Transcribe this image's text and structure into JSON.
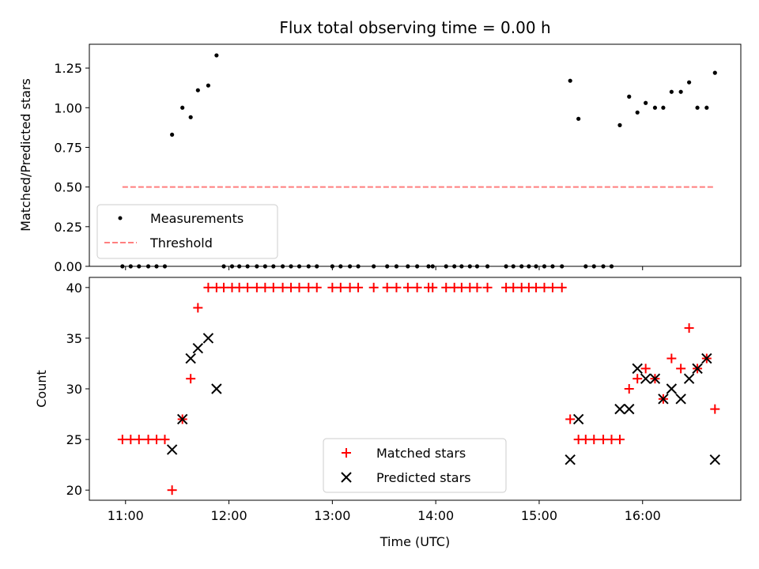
{
  "chart_data": [
    {
      "type": "scatter",
      "title": "Flux total observing time = 0.00 h",
      "ylabel": "Matched/Predicted stars",
      "ylim": [
        0,
        1.4
      ],
      "xlim": [
        10.65,
        16.95
      ],
      "yticks": [
        0,
        0.25,
        0.5,
        0.75,
        1.0,
        1.25
      ],
      "ytick_labels": [
        "0.00",
        "0.25",
        "0.50",
        "0.75",
        "1.00",
        "1.25"
      ],
      "grid": false,
      "legend_placement": "lower-left",
      "series": [
        {
          "name": "Measurements",
          "kind": "points",
          "color": "#000000",
          "marker": "dot",
          "points": [
            [
              10.97,
              0
            ],
            [
              11.05,
              0
            ],
            [
              11.13,
              0
            ],
            [
              11.22,
              0
            ],
            [
              11.3,
              0
            ],
            [
              11.38,
              0
            ],
            [
              11.45,
              0.83
            ],
            [
              11.55,
              1.0
            ],
            [
              11.63,
              0.94
            ],
            [
              11.7,
              1.11
            ],
            [
              11.8,
              1.14
            ],
            [
              11.88,
              1.33
            ],
            [
              11.95,
              0
            ],
            [
              12.03,
              0
            ],
            [
              12.1,
              0
            ],
            [
              12.18,
              0
            ],
            [
              12.27,
              0
            ],
            [
              12.35,
              0
            ],
            [
              12.43,
              0
            ],
            [
              12.52,
              0
            ],
            [
              12.6,
              0
            ],
            [
              12.68,
              0
            ],
            [
              12.77,
              0
            ],
            [
              12.85,
              0
            ],
            [
              13.0,
              0
            ],
            [
              13.08,
              0
            ],
            [
              13.17,
              0
            ],
            [
              13.25,
              0
            ],
            [
              13.4,
              0
            ],
            [
              13.53,
              0
            ],
            [
              13.62,
              0
            ],
            [
              13.73,
              0
            ],
            [
              13.82,
              0
            ],
            [
              13.93,
              0
            ],
            [
              13.97,
              0
            ],
            [
              14.1,
              0
            ],
            [
              14.18,
              0
            ],
            [
              14.25,
              0
            ],
            [
              14.33,
              0
            ],
            [
              14.4,
              0
            ],
            [
              14.5,
              0
            ],
            [
              14.68,
              0
            ],
            [
              14.75,
              0
            ],
            [
              14.83,
              0
            ],
            [
              14.9,
              0
            ],
            [
              14.97,
              0
            ],
            [
              15.05,
              0
            ],
            [
              15.13,
              0
            ],
            [
              15.22,
              0
            ],
            [
              15.3,
              1.17
            ],
            [
              15.38,
              0.93
            ],
            [
              15.45,
              0
            ],
            [
              15.53,
              0
            ],
            [
              15.62,
              0
            ],
            [
              15.7,
              0
            ],
            [
              15.78,
              0.89
            ],
            [
              15.87,
              1.07
            ],
            [
              15.95,
              0.97
            ],
            [
              16.03,
              1.03
            ],
            [
              16.12,
              1.0
            ],
            [
              16.2,
              1.0
            ],
            [
              16.28,
              1.1
            ],
            [
              16.37,
              1.1
            ],
            [
              16.45,
              1.16
            ],
            [
              16.53,
              1.0
            ],
            [
              16.62,
              1.0
            ],
            [
              16.7,
              1.22
            ]
          ]
        },
        {
          "name": "Threshold",
          "kind": "line",
          "color": "#ff7f7f",
          "dashed": true,
          "x": [
            10.97,
            16.7
          ],
          "values": [
            0.5,
            0.5
          ]
        }
      ]
    },
    {
      "type": "scatter",
      "xlabel": "Time (UTC)",
      "ylabel": "Count",
      "ylim": [
        19,
        41
      ],
      "xlim": [
        10.65,
        16.95
      ],
      "yticks": [
        20,
        25,
        30,
        35,
        40
      ],
      "ytick_labels": [
        "20",
        "25",
        "30",
        "35",
        "40"
      ],
      "xticks": [
        11,
        12,
        13,
        14,
        15,
        16
      ],
      "xtick_labels": [
        "11:00",
        "12:00",
        "13:00",
        "14:00",
        "15:00",
        "16:00"
      ],
      "grid": false,
      "legend_placement": "lower-center",
      "series": [
        {
          "name": "Matched stars",
          "kind": "points",
          "color": "#ff0000",
          "marker": "plus",
          "points": [
            [
              10.97,
              25
            ],
            [
              11.05,
              25
            ],
            [
              11.13,
              25
            ],
            [
              11.22,
              25
            ],
            [
              11.3,
              25
            ],
            [
              11.38,
              25
            ],
            [
              11.45,
              20
            ],
            [
              11.55,
              27
            ],
            [
              11.63,
              31
            ],
            [
              11.7,
              38
            ],
            [
              11.8,
              40
            ],
            [
              11.88,
              40
            ],
            [
              11.95,
              40
            ],
            [
              12.03,
              40
            ],
            [
              12.1,
              40
            ],
            [
              12.18,
              40
            ],
            [
              12.27,
              40
            ],
            [
              12.35,
              40
            ],
            [
              12.43,
              40
            ],
            [
              12.52,
              40
            ],
            [
              12.6,
              40
            ],
            [
              12.68,
              40
            ],
            [
              12.77,
              40
            ],
            [
              12.85,
              40
            ],
            [
              13.0,
              40
            ],
            [
              13.08,
              40
            ],
            [
              13.17,
              40
            ],
            [
              13.25,
              40
            ],
            [
              13.4,
              40
            ],
            [
              13.53,
              40
            ],
            [
              13.62,
              40
            ],
            [
              13.73,
              40
            ],
            [
              13.82,
              40
            ],
            [
              13.93,
              40
            ],
            [
              13.97,
              40
            ],
            [
              14.1,
              40
            ],
            [
              14.18,
              40
            ],
            [
              14.25,
              40
            ],
            [
              14.33,
              40
            ],
            [
              14.4,
              40
            ],
            [
              14.5,
              40
            ],
            [
              14.68,
              40
            ],
            [
              14.75,
              40
            ],
            [
              14.83,
              40
            ],
            [
              14.9,
              40
            ],
            [
              14.97,
              40
            ],
            [
              15.05,
              40
            ],
            [
              15.13,
              40
            ],
            [
              15.22,
              40
            ],
            [
              15.3,
              27
            ],
            [
              15.38,
              25
            ],
            [
              15.45,
              25
            ],
            [
              15.53,
              25
            ],
            [
              15.62,
              25
            ],
            [
              15.7,
              25
            ],
            [
              15.78,
              25
            ],
            [
              15.87,
              30
            ],
            [
              15.95,
              31
            ],
            [
              16.03,
              32
            ],
            [
              16.12,
              31
            ],
            [
              16.2,
              29
            ],
            [
              16.28,
              33
            ],
            [
              16.37,
              32
            ],
            [
              16.45,
              36
            ],
            [
              16.53,
              32
            ],
            [
              16.62,
              33
            ],
            [
              16.7,
              28
            ]
          ]
        },
        {
          "name": "Predicted stars",
          "kind": "points",
          "color": "#000000",
          "marker": "x",
          "points": [
            [
              11.45,
              24
            ],
            [
              11.55,
              27
            ],
            [
              11.63,
              33
            ],
            [
              11.7,
              34
            ],
            [
              11.8,
              35
            ],
            [
              11.88,
              30
            ],
            [
              15.3,
              23
            ],
            [
              15.38,
              27
            ],
            [
              15.78,
              28
            ],
            [
              15.87,
              28
            ],
            [
              15.95,
              32
            ],
            [
              16.03,
              31
            ],
            [
              16.12,
              31
            ],
            [
              16.2,
              29
            ],
            [
              16.28,
              30
            ],
            [
              16.37,
              29
            ],
            [
              16.45,
              31
            ],
            [
              16.53,
              32
            ],
            [
              16.62,
              33
            ],
            [
              16.7,
              23
            ]
          ]
        }
      ]
    }
  ]
}
